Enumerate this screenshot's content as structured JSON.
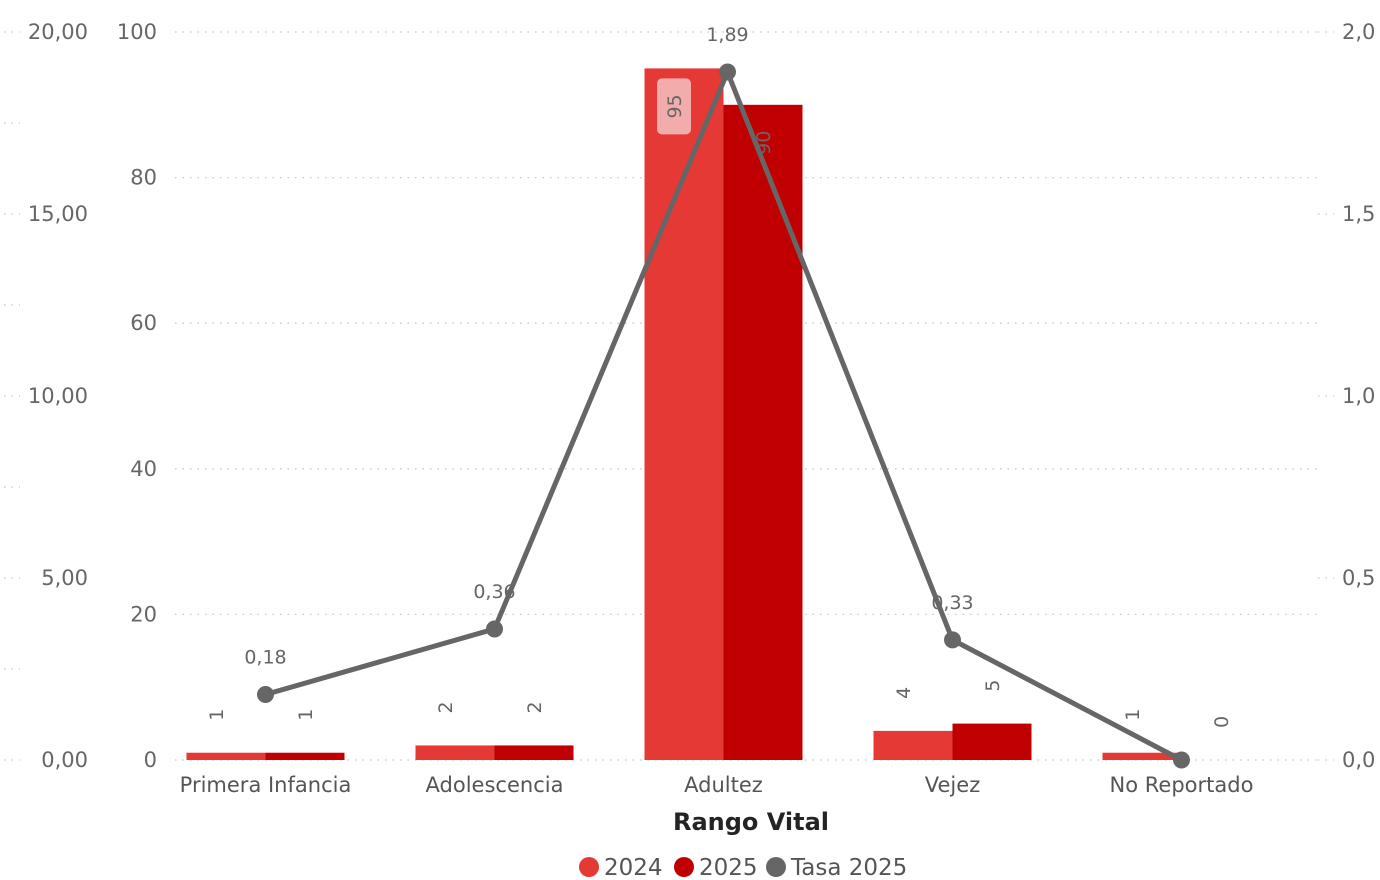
{
  "chart_data": {
    "type": "bar",
    "xlabel": "Rango Vital",
    "categories": [
      "Primera Infancia",
      "Adolescencia",
      "Adultez",
      "Vejez",
      "No Reportado"
    ],
    "series": [
      {
        "name": "2024",
        "type": "bar",
        "color": "#e53935",
        "values": [
          1,
          2,
          95,
          4,
          1
        ]
      },
      {
        "name": "2025",
        "type": "bar",
        "color": "#c00000",
        "values": [
          1,
          2,
          90,
          5,
          0
        ]
      },
      {
        "name": "Tasa 2025",
        "type": "line",
        "color": "#666666",
        "values": [
          0.18,
          0.36,
          1.89,
          0.33,
          0.0
        ],
        "value_labels": [
          "0,18",
          "0,36",
          "1,89",
          "0,33",
          ""
        ]
      }
    ],
    "y_left_outer": {
      "ticks": [
        "0,00",
        "5,00",
        "10,00",
        "15,00",
        "20,00"
      ],
      "range": [
        0,
        20
      ]
    },
    "y_left": {
      "ticks": [
        "0",
        "20",
        "40",
        "60",
        "80",
        "100"
      ],
      "range": [
        0,
        100
      ]
    },
    "y_right": {
      "ticks": [
        "0,0",
        "0,5",
        "1,0",
        "1,5",
        "2,0"
      ],
      "range": [
        0,
        2
      ]
    },
    "grid": true,
    "legend_position": "bottom-center"
  }
}
